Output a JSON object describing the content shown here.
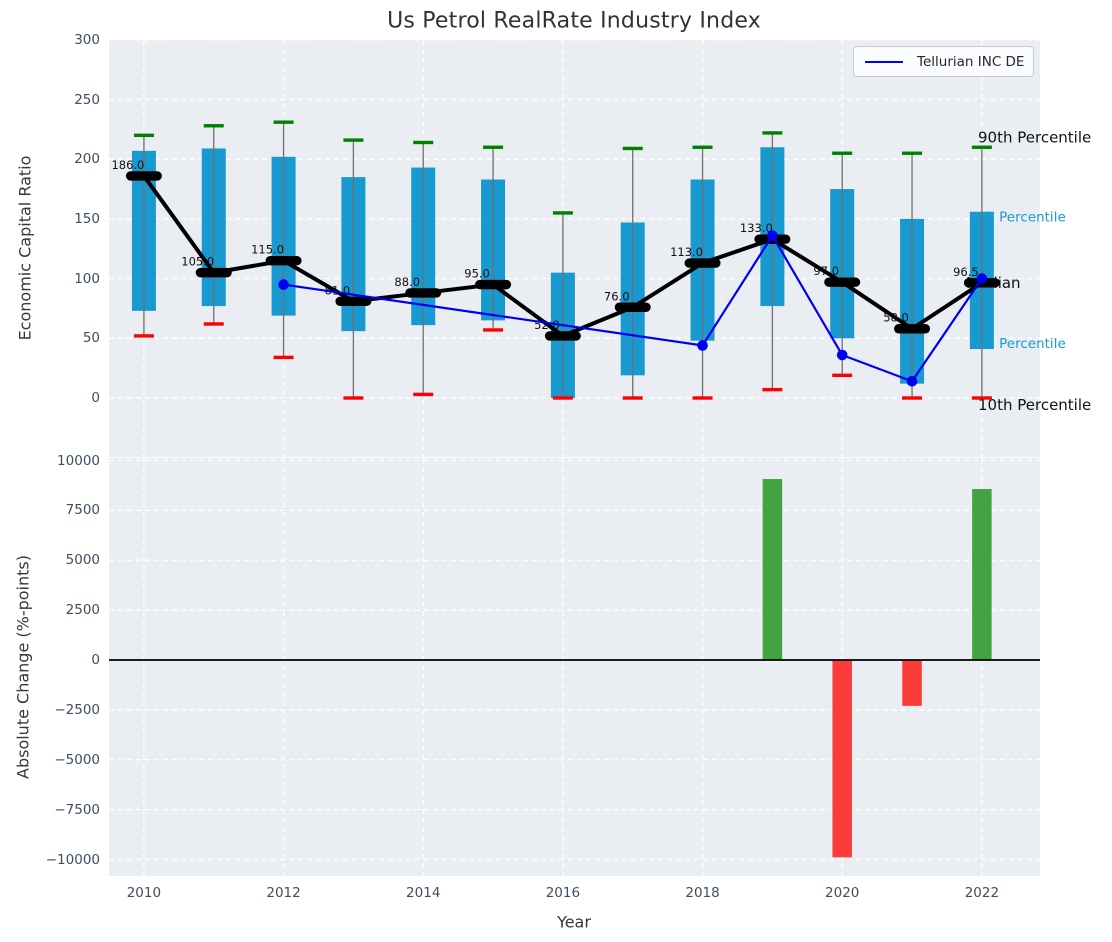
{
  "title": "Us Petrol RealRate Industry Index",
  "legend": {
    "series_label": "Tellurian INC DE"
  },
  "top_chart": {
    "ylabel": "Economic Capital Ratio",
    "yticks": [
      0,
      50,
      100,
      150,
      200,
      250,
      300
    ],
    "right_labels": [
      {
        "text": "90th Percentile",
        "value": 218,
        "color": "#111111",
        "size": 15
      },
      {
        "text": "th Percentile",
        "value": 152,
        "color": "#189ad1",
        "size": 13.5
      },
      {
        "text": "Median",
        "value": 96.5,
        "color": "#111111",
        "size": 15
      },
      {
        "text": "th Percentile",
        "value": 46,
        "color": "#189ad1",
        "size": 13.5
      },
      {
        "text": "10th Percentile",
        "value": -6,
        "color": "#111111",
        "size": 15
      }
    ]
  },
  "bottom_chart": {
    "ylabel": "Absolute Change (%-points)",
    "xlabel": "Year",
    "yticks": [
      -10000,
      -7500,
      -5000,
      -2500,
      0,
      2500,
      5000,
      7500,
      10000
    ],
    "xticks": [
      2010,
      2012,
      2014,
      2016,
      2018,
      2020,
      2022
    ]
  },
  "chart_data": [
    {
      "type": "boxplot+line",
      "title": "Us Petrol RealRate Industry Index",
      "ylabel": "Economic Capital Ratio",
      "ylim": [
        -48,
        300
      ],
      "grid": true,
      "years": [
        2010,
        2011,
        2012,
        2013,
        2014,
        2015,
        2016,
        2017,
        2018,
        2019,
        2020,
        2021,
        2022
      ],
      "p10": [
        52,
        62,
        34,
        0,
        3,
        57,
        0,
        0,
        0,
        7,
        19,
        0,
        0
      ],
      "q1": [
        73,
        77,
        69,
        56,
        61,
        65,
        0,
        19,
        48,
        77,
        50,
        12,
        41
      ],
      "median": [
        186,
        105,
        115,
        81,
        88,
        95,
        52,
        76,
        113,
        133,
        97,
        58,
        96.5
      ],
      "q3": [
        207,
        209,
        202,
        185,
        193,
        183,
        105,
        147,
        183,
        210,
        175,
        150,
        156
      ],
      "p90": [
        220,
        228,
        231,
        216,
        214,
        210,
        155,
        209,
        210,
        222,
        205,
        205,
        210
      ],
      "median_labels": [
        "186.0",
        "105.0",
        "115.0",
        "81.0",
        "88.0",
        "95.0",
        "52.0",
        "76.0",
        "113.0",
        "133.0",
        "97.0",
        "58.0",
        "96.5"
      ],
      "series": [
        {
          "name": "Tellurian INC DE",
          "x": [
            2012,
            2018,
            2019,
            2020,
            2021,
            2022
          ],
          "y": [
            95,
            44,
            136,
            36,
            14,
            100
          ],
          "color": "#0000f0"
        }
      ]
    },
    {
      "type": "bar",
      "ylabel": "Absolute Change (%-points)",
      "xlabel": "Year",
      "ylim": [
        -10830,
        10130
      ],
      "grid": true,
      "x": [
        2019,
        2020,
        2021,
        2022
      ],
      "values": [
        9070,
        -9890,
        -2300,
        8570
      ],
      "positive_color": "#43a340",
      "negative_color": "#fc3b3b"
    }
  ],
  "colors": {
    "plot_bg": "#eaedf2",
    "grid": "#ffffff",
    "box_fill": "#189ad1",
    "whisker": "#707070",
    "p90_cap": "#008000",
    "p10_cap": "#ff0000",
    "median_marker": "#000000",
    "median_line": "#000000",
    "tellurian_line": "#0000f0",
    "bar_positive": "#43a340",
    "bar_negative": "#fc3b3b",
    "tick_label": "#3e4e60"
  }
}
